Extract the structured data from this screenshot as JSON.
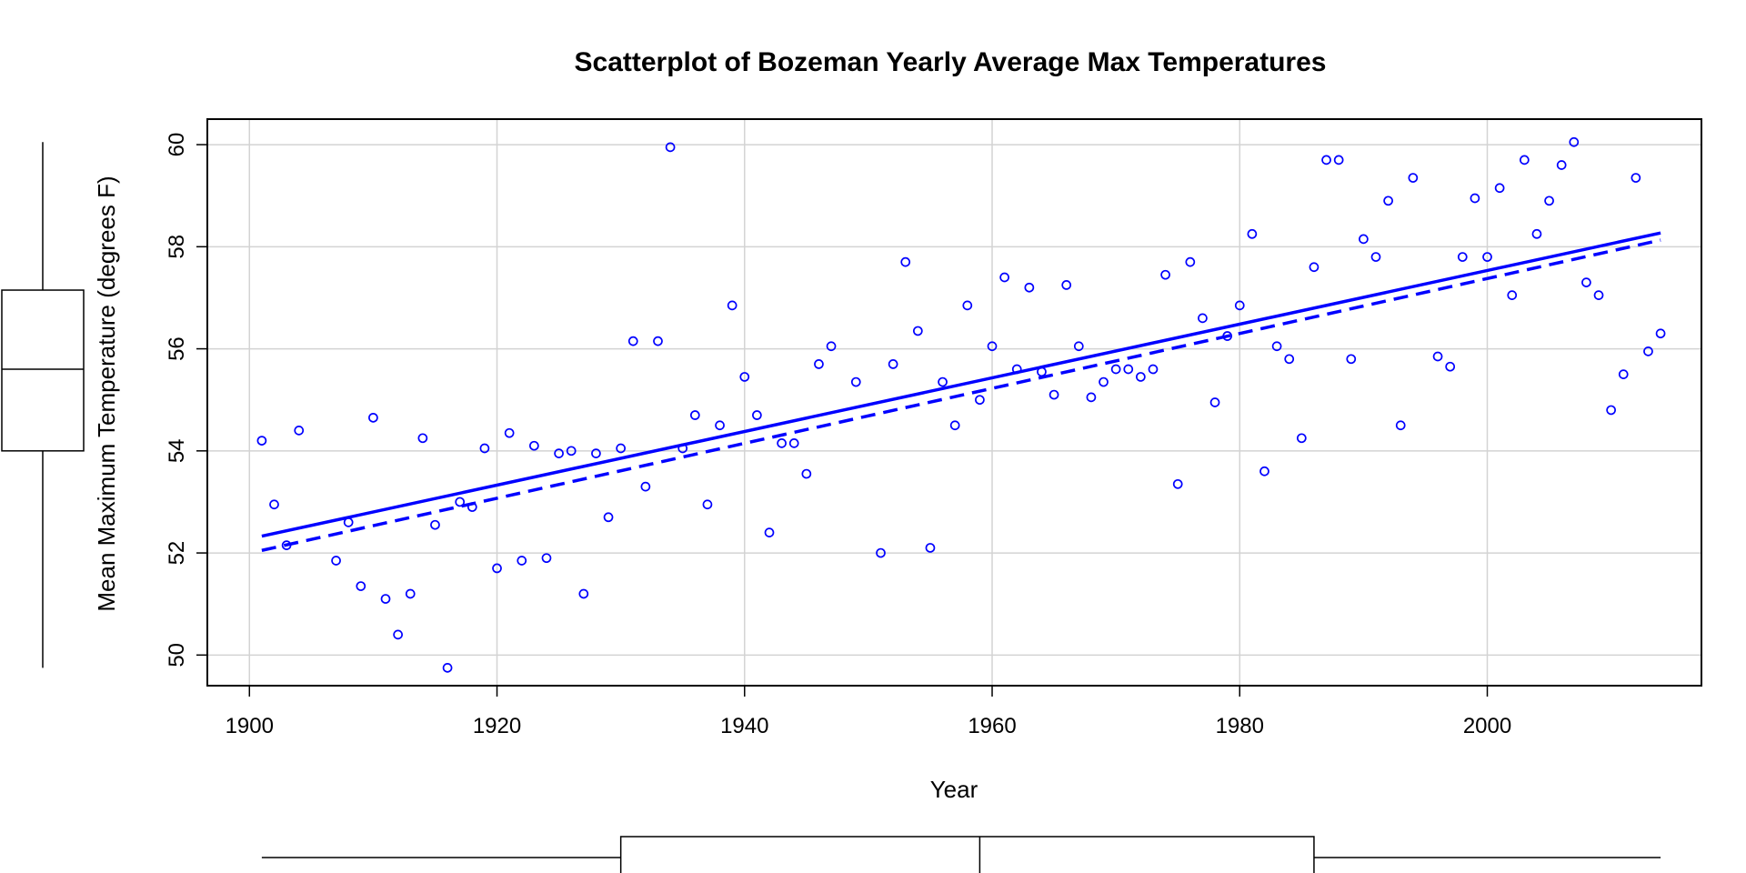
{
  "chart_data": {
    "type": "scatter",
    "title": "Scatterplot of Bozeman Yearly Average Max Temperatures",
    "xlabel": "Year",
    "ylabel": "Mean Maximum Temperature (degrees F)",
    "xlim": [
      1896.6,
      2017.3
    ],
    "ylim": [
      49.4,
      60.5
    ],
    "x_ticks": [
      1900,
      1920,
      1940,
      1960,
      1980,
      2000
    ],
    "y_ticks": [
      50,
      52,
      54,
      56,
      58,
      60
    ],
    "x_tick_labels": [
      "1900",
      "1920",
      "1940",
      "1960",
      "1980",
      "2000"
    ],
    "y_tick_labels": [
      "50",
      "52",
      "54",
      "56",
      "58",
      "60"
    ],
    "grid": true,
    "point_color": "#0000ff",
    "points": [
      [
        1901,
        54.2
      ],
      [
        1902,
        52.95
      ],
      [
        1903,
        52.15
      ],
      [
        1904,
        54.4
      ],
      [
        1907,
        51.85
      ],
      [
        1908,
        52.6
      ],
      [
        1909,
        51.35
      ],
      [
        1910,
        54.65
      ],
      [
        1911,
        51.1
      ],
      [
        1912,
        50.4
      ],
      [
        1913,
        51.2
      ],
      [
        1914,
        54.25
      ],
      [
        1915,
        52.55
      ],
      [
        1916,
        49.75
      ],
      [
        1917,
        53.0
      ],
      [
        1918,
        52.9
      ],
      [
        1919,
        54.05
      ],
      [
        1920,
        51.7
      ],
      [
        1921,
        54.35
      ],
      [
        1922,
        51.85
      ],
      [
        1923,
        54.1
      ],
      [
        1924,
        51.9
      ],
      [
        1925,
        53.95
      ],
      [
        1926,
        54.0
      ],
      [
        1927,
        51.2
      ],
      [
        1928,
        53.95
      ],
      [
        1929,
        52.7
      ],
      [
        1930,
        54.05
      ],
      [
        1931,
        56.15
      ],
      [
        1932,
        53.3
      ],
      [
        1933,
        56.15
      ],
      [
        1934,
        59.95
      ],
      [
        1935,
        54.05
      ],
      [
        1936,
        54.7
      ],
      [
        1937,
        52.95
      ],
      [
        1938,
        54.5
      ],
      [
        1939,
        56.85
      ],
      [
        1940,
        55.45
      ],
      [
        1941,
        54.7
      ],
      [
        1942,
        52.4
      ],
      [
        1943,
        54.15
      ],
      [
        1944,
        54.15
      ],
      [
        1945,
        53.55
      ],
      [
        1946,
        55.7
      ],
      [
        1947,
        56.05
      ],
      [
        1949,
        55.35
      ],
      [
        1951,
        52.0
      ],
      [
        1952,
        55.7
      ],
      [
        1953,
        57.7
      ],
      [
        1954,
        56.35
      ],
      [
        1955,
        52.1
      ],
      [
        1956,
        55.35
      ],
      [
        1957,
        54.5
      ],
      [
        1958,
        56.85
      ],
      [
        1959,
        55.0
      ],
      [
        1960,
        56.05
      ],
      [
        1961,
        57.4
      ],
      [
        1962,
        55.6
      ],
      [
        1963,
        57.2
      ],
      [
        1964,
        55.55
      ],
      [
        1965,
        55.1
      ],
      [
        1966,
        57.25
      ],
      [
        1967,
        56.05
      ],
      [
        1968,
        55.05
      ],
      [
        1969,
        55.35
      ],
      [
        1970,
        55.6
      ],
      [
        1971,
        55.6
      ],
      [
        1972,
        55.45
      ],
      [
        1973,
        55.6
      ],
      [
        1974,
        57.45
      ],
      [
        1975,
        53.35
      ],
      [
        1976,
        57.7
      ],
      [
        1977,
        56.6
      ],
      [
        1978,
        54.95
      ],
      [
        1979,
        56.25
      ],
      [
        1980,
        56.85
      ],
      [
        1981,
        58.25
      ],
      [
        1982,
        53.6
      ],
      [
        1983,
        56.05
      ],
      [
        1984,
        55.8
      ],
      [
        1985,
        54.25
      ],
      [
        1986,
        57.6
      ],
      [
        1987,
        59.7
      ],
      [
        1988,
        59.7
      ],
      [
        1989,
        55.8
      ],
      [
        1990,
        58.15
      ],
      [
        1991,
        57.8
      ],
      [
        1992,
        58.9
      ],
      [
        1993,
        54.5
      ],
      [
        1994,
        59.35
      ],
      [
        1996,
        55.85
      ],
      [
        1997,
        55.65
      ],
      [
        1998,
        57.8
      ],
      [
        1999,
        58.95
      ],
      [
        2000,
        57.8
      ],
      [
        2001,
        59.15
      ],
      [
        2002,
        57.05
      ],
      [
        2003,
        59.7
      ],
      [
        2004,
        58.25
      ],
      [
        2005,
        58.9
      ],
      [
        2006,
        59.6
      ],
      [
        2007,
        60.05
      ],
      [
        2008,
        57.3
      ],
      [
        2009,
        57.05
      ],
      [
        2010,
        54.8
      ],
      [
        2011,
        55.5
      ],
      [
        2012,
        59.35
      ],
      [
        2013,
        55.95
      ],
      [
        2014,
        56.3
      ]
    ],
    "regression_line": {
      "style": "solid",
      "x": [
        1901,
        2014
      ],
      "y": [
        52.33,
        58.27
      ]
    },
    "smooth_line": {
      "style": "dashed",
      "x": [
        1901,
        2014
      ],
      "y": [
        52.05,
        58.13
      ]
    },
    "x_boxplot": {
      "min": 1901,
      "q1": 1930,
      "median": 1959,
      "q3": 1986,
      "max": 2014
    },
    "y_boxplot": {
      "min": 49.75,
      "q1": 54.0,
      "median": 55.6,
      "q3": 57.15,
      "max": 60.05
    }
  }
}
